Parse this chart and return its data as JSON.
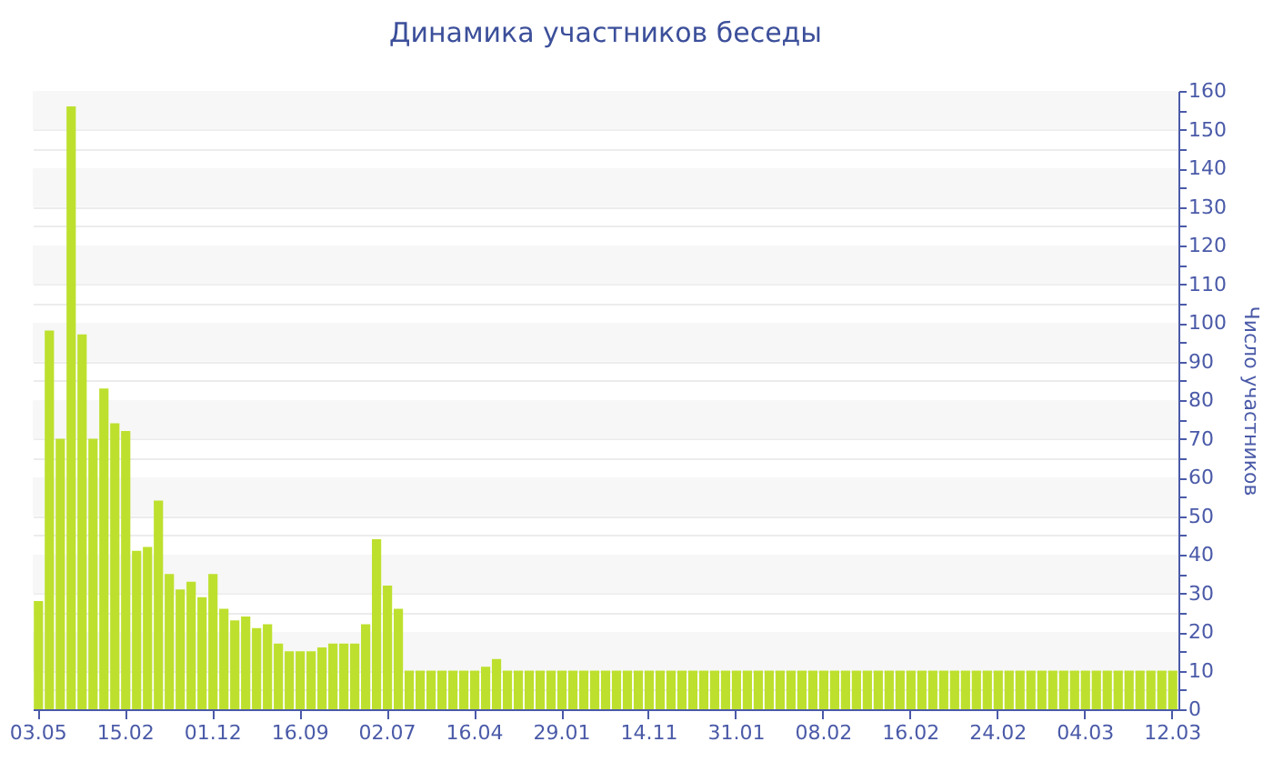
{
  "chart_data": {
    "type": "bar",
    "title": "Динамика участников беседы",
    "ylabel": "Число участников",
    "categories": [
      "03.05",
      null,
      null,
      null,
      null,
      null,
      null,
      null,
      "15.02",
      null,
      null,
      null,
      null,
      null,
      null,
      null,
      "01.12",
      null,
      null,
      null,
      null,
      null,
      null,
      null,
      "16.09",
      null,
      null,
      null,
      null,
      null,
      null,
      null,
      "02.07",
      null,
      null,
      null,
      null,
      null,
      null,
      null,
      "16.04",
      null,
      null,
      null,
      null,
      null,
      null,
      null,
      "29.01",
      null,
      null,
      null,
      null,
      null,
      null,
      null,
      "14.11",
      null,
      null,
      null,
      null,
      null,
      null,
      null,
      "31.01",
      null,
      null,
      null,
      null,
      null,
      null,
      null,
      "08.02",
      null,
      null,
      null,
      null,
      null,
      null,
      null,
      "16.02",
      null,
      null,
      null,
      null,
      null,
      null,
      null,
      "24.02",
      null,
      null,
      null,
      null,
      null,
      null,
      null,
      "04.03",
      null,
      null,
      null,
      null,
      null,
      null,
      null,
      "12.03"
    ],
    "values": [
      28,
      98,
      70,
      156,
      97,
      70,
      83,
      74,
      72,
      41,
      42,
      54,
      35,
      31,
      33,
      29,
      35,
      26,
      23,
      24,
      21,
      22,
      17,
      15,
      15,
      15,
      16,
      17,
      17,
      17,
      22,
      44,
      32,
      26,
      10,
      10,
      10,
      10,
      10,
      10,
      10,
      11,
      13,
      10,
      10,
      10,
      10,
      10,
      10,
      10,
      10,
      10,
      10,
      10,
      10,
      10,
      10,
      10,
      10,
      10,
      10,
      10,
      10,
      10,
      10,
      10,
      10,
      10,
      10,
      10,
      10,
      10,
      10,
      10,
      10,
      10,
      10,
      10,
      10,
      10,
      10,
      10,
      10,
      10,
      10,
      10,
      10,
      10,
      10,
      10,
      10,
      10,
      10,
      10,
      10,
      10,
      10,
      10,
      10,
      10,
      10,
      10,
      10,
      10,
      10
    ],
    "color": "#bde02e",
    "ylim": [
      0,
      160
    ],
    "yticks": [
      0,
      {
        "value": 5,
        "label": null
      },
      10,
      {
        "value": 15,
        "label": null
      },
      20,
      {
        "value": 25,
        "label": null
      },
      30,
      {
        "value": 35,
        "label": null
      },
      40,
      {
        "value": 45,
        "label": null
      },
      50,
      {
        "value": 55,
        "label": null
      },
      60,
      {
        "value": 65,
        "label": null
      },
      70,
      {
        "value": 75,
        "label": null
      },
      80,
      {
        "value": 85,
        "label": null
      },
      90,
      {
        "value": 95,
        "label": null
      },
      100,
      {
        "value": 105,
        "label": null
      },
      110,
      {
        "value": 115,
        "label": null
      },
      120,
      {
        "value": 125,
        "label": null
      },
      130,
      {
        "value": 135,
        "label": null
      },
      140,
      {
        "value": 145,
        "label": null
      },
      150,
      {
        "value": 155,
        "label": null
      },
      160
    ],
    "grid": "y"
  }
}
